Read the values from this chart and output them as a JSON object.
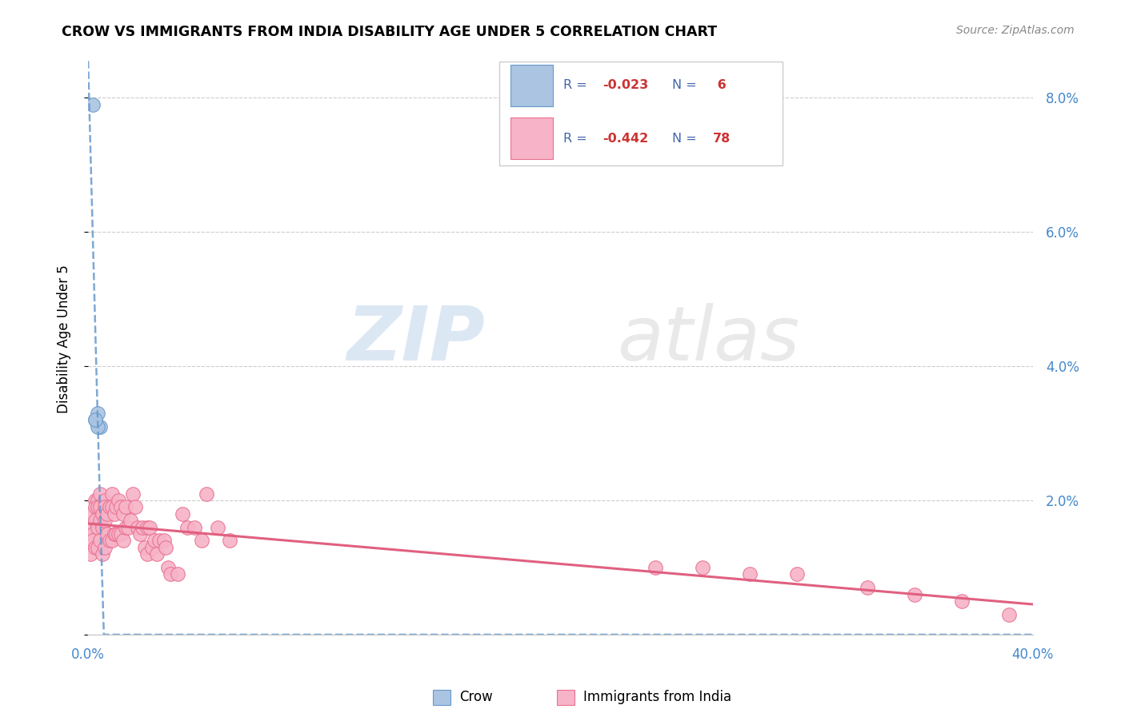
{
  "title": "CROW VS IMMIGRANTS FROM INDIA DISABILITY AGE UNDER 5 CORRELATION CHART",
  "source": "Source: ZipAtlas.com",
  "ylabel": "Disability Age Under 5",
  "watermark_zip": "ZIP",
  "watermark_atlas": "atlas",
  "crow_R": -0.023,
  "crow_N": 6,
  "india_R": -0.442,
  "india_N": 78,
  "xlim": [
    0.0,
    0.4
  ],
  "ylim": [
    0.0,
    0.088
  ],
  "x_ticks": [
    0.0,
    0.4
  ],
  "x_tick_labels": [
    "0.0%",
    "40.0%"
  ],
  "y_ticks": [
    0.0,
    0.02,
    0.04,
    0.06,
    0.08
  ],
  "y_tick_labels_right": [
    "",
    "2.0%",
    "4.0%",
    "6.0%",
    "8.0%"
  ],
  "crow_color": "#aac4e2",
  "crow_edge_color": "#6699cc",
  "india_color": "#f7b3c8",
  "india_edge_color": "#e87090",
  "crow_line_color": "#6699cc",
  "india_line_color": "#e06080",
  "background_color": "#ffffff",
  "grid_color": "#cccccc",
  "crow_x": [
    0.002,
    0.003,
    0.004,
    0.005,
    0.004,
    0.003
  ],
  "crow_y": [
    0.079,
    0.032,
    0.033,
    0.031,
    0.031,
    0.032
  ],
  "india_x": [
    0.001,
    0.001,
    0.002,
    0.002,
    0.002,
    0.003,
    0.003,
    0.003,
    0.003,
    0.004,
    0.004,
    0.004,
    0.004,
    0.005,
    0.005,
    0.005,
    0.005,
    0.006,
    0.006,
    0.006,
    0.007,
    0.007,
    0.007,
    0.007,
    0.008,
    0.008,
    0.009,
    0.009,
    0.01,
    0.01,
    0.01,
    0.011,
    0.011,
    0.012,
    0.012,
    0.013,
    0.013,
    0.014,
    0.014,
    0.015,
    0.015,
    0.016,
    0.016,
    0.017,
    0.018,
    0.019,
    0.02,
    0.021,
    0.022,
    0.023,
    0.024,
    0.025,
    0.025,
    0.026,
    0.027,
    0.028,
    0.029,
    0.03,
    0.032,
    0.033,
    0.034,
    0.035,
    0.038,
    0.04,
    0.042,
    0.045,
    0.048,
    0.05,
    0.055,
    0.06,
    0.24,
    0.26,
    0.28,
    0.3,
    0.33,
    0.35,
    0.37,
    0.39
  ],
  "india_y": [
    0.018,
    0.012,
    0.016,
    0.015,
    0.014,
    0.02,
    0.019,
    0.017,
    0.013,
    0.02,
    0.019,
    0.016,
    0.013,
    0.021,
    0.019,
    0.017,
    0.014,
    0.018,
    0.016,
    0.012,
    0.02,
    0.019,
    0.017,
    0.013,
    0.018,
    0.015,
    0.019,
    0.014,
    0.021,
    0.019,
    0.014,
    0.018,
    0.015,
    0.019,
    0.015,
    0.02,
    0.015,
    0.019,
    0.015,
    0.018,
    0.014,
    0.019,
    0.016,
    0.016,
    0.017,
    0.021,
    0.019,
    0.016,
    0.015,
    0.016,
    0.013,
    0.016,
    0.012,
    0.016,
    0.013,
    0.014,
    0.012,
    0.014,
    0.014,
    0.013,
    0.01,
    0.009,
    0.009,
    0.018,
    0.016,
    0.016,
    0.014,
    0.021,
    0.016,
    0.014,
    0.01,
    0.01,
    0.009,
    0.009,
    0.007,
    0.006,
    0.005,
    0.003
  ],
  "legend_text_color": "#4466aa",
  "legend_value_color": "#cc3333",
  "axis_tick_color": "#4488cc"
}
